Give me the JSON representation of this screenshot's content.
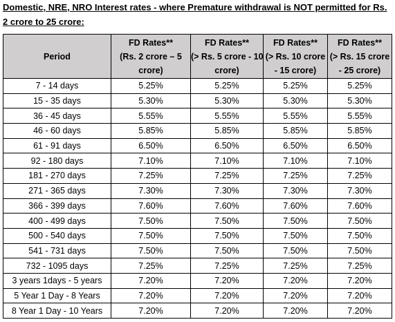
{
  "heading": "Domestic, NRE, NRO Interest rates - where Premature withdrawal is NOT permitted for Rs. 2 crore to 25 crore:",
  "table": {
    "headers": [
      [
        "Period"
      ],
      [
        "FD Rates**",
        "(Rs. 2 crore – 5",
        "crore)"
      ],
      [
        "FD Rates**",
        "(> Rs. 5 crore - 10",
        "crore)"
      ],
      [
        "FD Rates**",
        "(> Rs. 10 crore",
        "- 15 crore)"
      ],
      [
        "FD Rates**",
        "(> Rs. 15 crore",
        "- 25 crore)"
      ]
    ],
    "rows": [
      [
        "7 - 14 days",
        "5.25%",
        "5.25%",
        "5.25%",
        "5.25%"
      ],
      [
        "15 - 35 days",
        "5.30%",
        "5.30%",
        "5.30%",
        "5.30%"
      ],
      [
        "36 - 45 days",
        "5.55%",
        "5.55%",
        "5.55%",
        "5.55%"
      ],
      [
        "46 - 60 days",
        "5.85%",
        "5.85%",
        "5.85%",
        "5.85%"
      ],
      [
        "61 - 91 days",
        "6.50%",
        "6.50%",
        "6.50%",
        "6.50%"
      ],
      [
        "92 - 180 days",
        "7.10%",
        "7.10%",
        "7.10%",
        "7.10%"
      ],
      [
        "181 - 270 days",
        "7.25%",
        "7.25%",
        "7.25%",
        "7.25%"
      ],
      [
        "271 - 365 days",
        "7.30%",
        "7.30%",
        "7.30%",
        "7.30%"
      ],
      [
        "366 - 399 days",
        "7.60%",
        "7.60%",
        "7.60%",
        "7.60%"
      ],
      [
        "400 - 499 days",
        "7.50%",
        "7.50%",
        "7.50%",
        "7.50%"
      ],
      [
        "500 - 540 days",
        "7.50%",
        "7.50%",
        "7.50%",
        "7.50%"
      ],
      [
        "541 - 731 days",
        "7.50%",
        "7.50%",
        "7.50%",
        "7.50%"
      ],
      [
        "732 - 1095 days",
        "7.25%",
        "7.25%",
        "7.25%",
        "7.25%"
      ],
      [
        "3 years 1days - 5 years",
        "7.20%",
        "7.20%",
        "7.20%",
        "7.20%"
      ],
      [
        "5 Year 1 Day - 8 Years",
        "7.20%",
        "7.20%",
        "7.20%",
        "7.20%"
      ],
      [
        "8 Year 1 Day - 10 Years",
        "7.20%",
        "7.20%",
        "7.20%",
        "7.20%"
      ]
    ]
  },
  "colors": {
    "header_background": "#d0cece",
    "border": "#000000",
    "text": "#000000"
  }
}
